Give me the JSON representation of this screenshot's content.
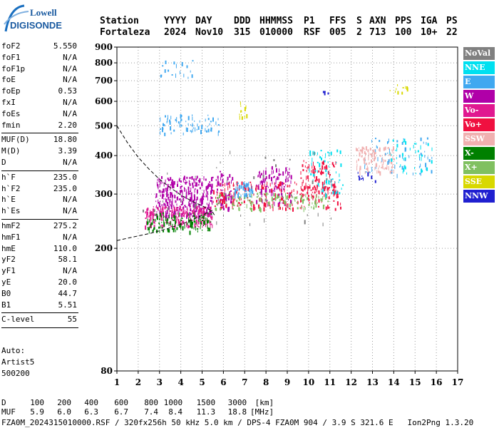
{
  "logo": {
    "line1": "Lowell",
    "line2": "DIGISONDE"
  },
  "header": {
    "labels": [
      {
        "text": "Station",
        "x": 0
      },
      {
        "text": "YYYY",
        "x": 90
      },
      {
        "text": "DAY",
        "x": 134
      },
      {
        "text": "DDD",
        "x": 188
      },
      {
        "text": "HHMMSS",
        "x": 224
      },
      {
        "text": "P1",
        "x": 286
      },
      {
        "text": "FFS",
        "x": 322
      },
      {
        "text": "S",
        "x": 360
      },
      {
        "text": "AXN",
        "x": 378
      },
      {
        "text": "PPS",
        "x": 414
      },
      {
        "text": "IGA",
        "x": 450
      },
      {
        "text": "PS",
        "x": 486
      }
    ],
    "values": [
      {
        "text": "Fortaleza",
        "x": 0
      },
      {
        "text": "2024",
        "x": 90
      },
      {
        "text": "Nov10",
        "x": 134
      },
      {
        "text": "315",
        "x": 188
      },
      {
        "text": "010000",
        "x": 224
      },
      {
        "text": "RSF",
        "x": 286
      },
      {
        "text": "005",
        "x": 322
      },
      {
        "text": "2",
        "x": 360
      },
      {
        "text": "713",
        "x": 378
      },
      {
        "text": "100",
        "x": 414
      },
      {
        "text": "10+",
        "x": 450
      },
      {
        "text": "22",
        "x": 486
      }
    ]
  },
  "params": [
    {
      "label": "foF2",
      "value": "5.550"
    },
    {
      "label": "foF1",
      "value": "N/A"
    },
    {
      "label": "foF1p",
      "value": "N/A"
    },
    {
      "label": "foE",
      "value": "N/A"
    },
    {
      "label": "foEp",
      "value": "0.53"
    },
    {
      "label": "fxI",
      "value": "N/A"
    },
    {
      "label": "foEs",
      "value": "N/A"
    },
    {
      "label": "fmin",
      "value": "2.20"
    },
    {
      "sep": true
    },
    {
      "label": "MUF(D)",
      "value": "18.80"
    },
    {
      "label": "M(D)",
      "value": "3.39"
    },
    {
      "label": "D",
      "value": "N/A"
    },
    {
      "sep": true
    },
    {
      "label": "h`F",
      "value": "235.0"
    },
    {
      "label": "h`F2",
      "value": "235.0"
    },
    {
      "label": "h`E",
      "value": "N/A"
    },
    {
      "label": "h`Es",
      "value": "N/A"
    },
    {
      "sep": true
    },
    {
      "label": "hmF2",
      "value": "275.2"
    },
    {
      "label": "hmF1",
      "value": "N/A"
    },
    {
      "label": "hmE",
      "value": "110.0"
    },
    {
      "label": "yF2",
      "value": "58.1"
    },
    {
      "label": "yF1",
      "value": "N/A"
    },
    {
      "label": "yE",
      "value": "20.0"
    },
    {
      "label": "B0",
      "value": "44.7"
    },
    {
      "label": "B1",
      "value": "5.51"
    },
    {
      "sep": true
    },
    {
      "label": "C-level",
      "value": "55"
    },
    {
      "sep": true
    }
  ],
  "autoscale": [
    "Auto:",
    "Artist5",
    "500200"
  ],
  "legend": [
    {
      "label": "NoVal",
      "color": "#808080"
    },
    {
      "label": "NNE",
      "color": "#00e0f0"
    },
    {
      "label": "E",
      "color": "#40a8f0"
    },
    {
      "label": "W",
      "color": "#b000a8"
    },
    {
      "label": "Vo-",
      "color": "#e01890"
    },
    {
      "label": "Vo+",
      "color": "#f01040"
    },
    {
      "label": "SSW",
      "color": "#f0b0b0"
    },
    {
      "label": "X-",
      "color": "#008000"
    },
    {
      "label": "X+",
      "color": "#80c060"
    },
    {
      "label": "SSE",
      "color": "#d8d800"
    },
    {
      "label": "NNW",
      "color": "#2020d0"
    }
  ],
  "chart_data": {
    "type": "scatter",
    "title": "",
    "xlabel": "",
    "ylabel": "",
    "xlim": [
      1,
      17
    ],
    "ylim": [
      80,
      900
    ],
    "x_ticks": [
      1,
      2,
      3,
      4,
      5,
      6,
      7,
      8,
      9,
      10,
      11,
      12,
      13,
      14,
      15,
      16,
      17
    ],
    "y_ticks": [
      80,
      200,
      300,
      400,
      500,
      600,
      700,
      800,
      900
    ],
    "y_scale": "log",
    "grid": true,
    "clusters": [
      {
        "color": "#b000a8",
        "x": [
          2.8,
          5.5
        ],
        "y": [
          255,
          345
        ],
        "n": 340
      },
      {
        "color": "#b000a8",
        "x": [
          5.6,
          6.4
        ],
        "y": [
          270,
          360
        ],
        "n": 60
      },
      {
        "color": "#b000a8",
        "x": [
          7.5,
          9.2
        ],
        "y": [
          280,
          370
        ],
        "n": 120
      },
      {
        "color": "#e01890",
        "x": [
          2.3,
          5.5
        ],
        "y": [
          235,
          275
        ],
        "n": 180
      },
      {
        "color": "#f01040",
        "x": [
          5.5,
          11.5
        ],
        "y": [
          270,
          330
        ],
        "n": 220
      },
      {
        "color": "#f01040",
        "x": [
          9.6,
          11.3
        ],
        "y": [
          300,
          390
        ],
        "n": 90
      },
      {
        "color": "#008000",
        "x": [
          2.4,
          5.4
        ],
        "y": [
          228,
          262
        ],
        "n": 130
      },
      {
        "color": "#80c060",
        "x": [
          5.5,
          11
        ],
        "y": [
          270,
          305
        ],
        "n": 120
      },
      {
        "color": "#40a8f0",
        "x": [
          6.5,
          7.4
        ],
        "y": [
          295,
          330
        ],
        "n": 50
      },
      {
        "color": "#40a8f0",
        "x": [
          3,
          5.8
        ],
        "y": [
          475,
          545
        ],
        "n": 70
      },
      {
        "color": "#40a8f0",
        "x": [
          12.6,
          15.8
        ],
        "y": [
          345,
          460
        ],
        "n": 60
      },
      {
        "color": "#f0b0b0",
        "x": [
          12.2,
          14
        ],
        "y": [
          355,
          430
        ],
        "n": 100
      },
      {
        "color": "#00e0f0",
        "x": [
          10,
          11.6
        ],
        "y": [
          300,
          420
        ],
        "n": 60
      },
      {
        "color": "#00e0f0",
        "x": [
          13.8,
          15.8
        ],
        "y": [
          350,
          455
        ],
        "n": 40
      },
      {
        "color": "#d8d800",
        "x": [
          6.7,
          7.1
        ],
        "y": [
          530,
          600
        ],
        "n": 14
      },
      {
        "color": "#d8d800",
        "x": [
          13.8,
          14.7
        ],
        "y": [
          640,
          690
        ],
        "n": 10
      },
      {
        "color": "#40a8f0",
        "x": [
          3,
          4.6
        ],
        "y": [
          720,
          820
        ],
        "n": 18
      },
      {
        "color": "#2020d0",
        "x": [
          12.3,
          13.2
        ],
        "y": [
          330,
          360
        ],
        "n": 10
      },
      {
        "color": "#2020d0",
        "x": [
          10.6,
          10.9
        ],
        "y": [
          640,
          655
        ],
        "n": 4
      },
      {
        "color": "#808080",
        "x": [
          2,
          12
        ],
        "y": [
          240,
          420
        ],
        "n": 40
      }
    ],
    "profile_curve": {
      "x": [
        1.0,
        1.5,
        2.0,
        2.5,
        3.0,
        3.5,
        4.0,
        4.5,
        5.0,
        5.3,
        5.5,
        5.6
      ],
      "y": [
        500,
        440,
        395,
        362,
        335,
        315,
        298,
        285,
        275,
        268,
        262,
        255
      ]
    },
    "trace_curve": {
      "x": [
        1.0,
        1.8,
        2.6,
        3.4,
        4.2,
        4.8,
        5.2,
        5.5
      ],
      "y": [
        212,
        218,
        224,
        232,
        242,
        252,
        260,
        266
      ]
    }
  },
  "footer": {
    "d_label": "D",
    "d_values": [
      "100",
      "200",
      "400",
      "600",
      "800",
      "1000",
      "1500",
      "3000",
      "[km]"
    ],
    "muf_label": "MUF",
    "muf_values": [
      "5.9",
      "6.0",
      "6.3",
      "6.7",
      "7.4",
      "8.4",
      "11.3",
      "18.8",
      "[MHz]"
    ],
    "file_line": "FZA0M_2024315010000.RSF / 320fx256h 50 kHz 5.0 km / DPS-4 FZA0M 904 / 3.9 S 321.6 E   Ion2Png 1.3.20"
  }
}
